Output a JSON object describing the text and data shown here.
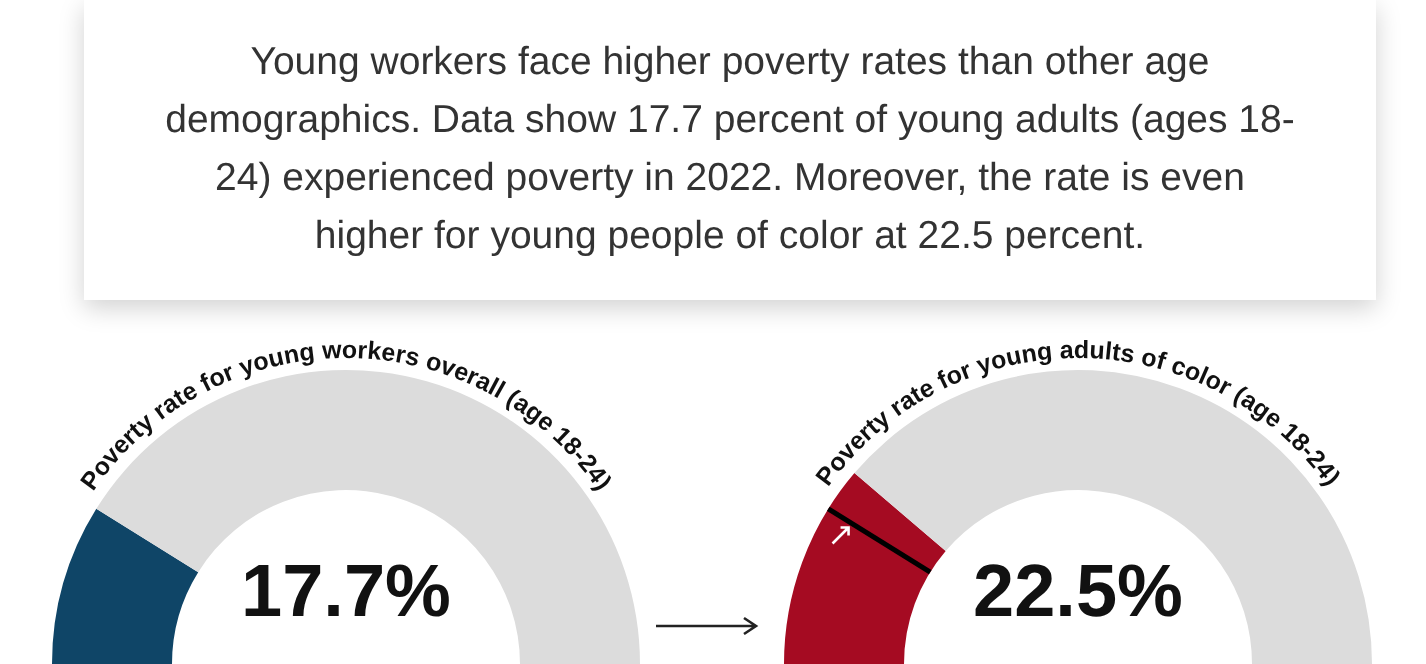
{
  "chart_data": [
    {
      "type": "other",
      "annotations": [
        "Young workers face higher poverty rates than other age demographics. Data show 17.7 percent of young adults (ages 18-24) experienced poverty in 2022. Moreover, the rate is even higher for young people of color at 22.5 percent."
      ]
    },
    {
      "type": "donut",
      "title": "Poverty rate for young workers overall (age 18-24)",
      "categories": [
        null,
        null
      ],
      "values": [
        17.7,
        82.3
      ],
      "colors": [
        "#0f4567",
        "#dcdcdc"
      ],
      "annotations": [
        "17.7%"
      ]
    },
    {
      "type": "donut",
      "title": "Poverty rate for young adults of color (age 18-24)",
      "categories": [
        null,
        null
      ],
      "values": [
        22.5,
        77.5
      ],
      "colors": [
        "#a50b22",
        "#dcdcdc"
      ],
      "annotations": [
        "22.5%"
      ]
    }
  ]
}
